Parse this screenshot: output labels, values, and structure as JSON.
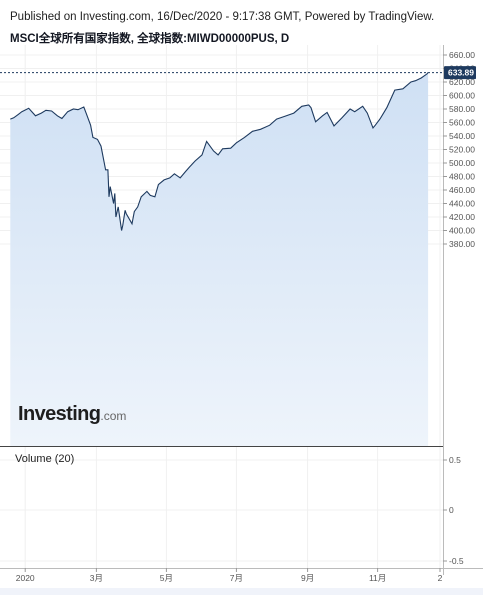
{
  "header": {
    "published": "Published on Investing.com, 16/Dec/2020 - 9:17:38 GMT, Powered by TradingView.",
    "title": "MSCI全球所有国家指数, 全球指数:MIWD00000PUS, D"
  },
  "logo": {
    "brand": "Investing",
    "domain": ".com"
  },
  "volume": {
    "label": "Volume (20)",
    "ticks": [
      "0.5",
      "0",
      "-0.5"
    ]
  },
  "colors": {
    "line": "#1e3a5f",
    "fill_top": "#cfe0f4",
    "fill_bottom": "#eef4fb",
    "grid": "#f0f0f0",
    "price_label_bg": "#1e3a5f"
  },
  "chart_data": {
    "type": "area",
    "series": [
      {
        "x": [
          "2019-12-17",
          "2019-12-20",
          "2019-12-24",
          "2019-12-27",
          "2020-01-02",
          "2020-01-08",
          "2020-01-13",
          "2020-01-17",
          "2020-01-22",
          "2020-01-27",
          "2020-01-31",
          "2020-02-05",
          "2020-02-10",
          "2020-02-14",
          "2020-02-19",
          "2020-02-21",
          "2020-02-25",
          "2020-02-27",
          "2020-03-02",
          "2020-03-05",
          "2020-03-09",
          "2020-03-11",
          "2020-03-12",
          "2020-03-13",
          "2020-03-16",
          "2020-03-17",
          "2020-03-18",
          "2020-03-20",
          "2020-03-23",
          "2020-03-24",
          "2020-03-26",
          "2020-03-27",
          "2020-04-01",
          "2020-04-03",
          "2020-04-06",
          "2020-04-09",
          "2020-04-14",
          "2020-04-17",
          "2020-04-21",
          "2020-04-24",
          "2020-04-29",
          "2020-05-04",
          "2020-05-08",
          "2020-05-13",
          "2020-05-18",
          "2020-05-21",
          "2020-05-26",
          "2020-06-01",
          "2020-06-05",
          "2020-06-08",
          "2020-06-11",
          "2020-06-15",
          "2020-06-19",
          "2020-06-26",
          "2020-07-01",
          "2020-07-08",
          "2020-07-15",
          "2020-07-22",
          "2020-07-30",
          "2020-08-05",
          "2020-08-12",
          "2020-08-20",
          "2020-08-27",
          "2020-09-02",
          "2020-09-04",
          "2020-09-08",
          "2020-09-14",
          "2020-09-18",
          "2020-09-24",
          "2020-10-01",
          "2020-10-08",
          "2020-10-12",
          "2020-10-19",
          "2020-10-23",
          "2020-10-28",
          "2020-10-30",
          "2020-11-03",
          "2020-11-09",
          "2020-11-16",
          "2020-11-23",
          "2020-11-30",
          "2020-12-04",
          "2020-12-09",
          "2020-12-14",
          "2020-12-15"
        ],
        "y": [
          565,
          567,
          572,
          576,
          581,
          570,
          574,
          578,
          577,
          570,
          566,
          576,
          580,
          579,
          583,
          574,
          556,
          538,
          535,
          525,
          490,
          490,
          450,
          465,
          440,
          455,
          420,
          435,
          400,
          408,
          430,
          425,
          410,
          428,
          435,
          450,
          458,
          452,
          450,
          468,
          475,
          478,
          484,
          478,
          488,
          494,
          503,
          512,
          532,
          525,
          518,
          512,
          521,
          522,
          530,
          538,
          547,
          550,
          556,
          565,
          569,
          574,
          584,
          586,
          582,
          561,
          570,
          575,
          555,
          567,
          580,
          576,
          584,
          574,
          552,
          556,
          565,
          582,
          608,
          610,
          620,
          622,
          626,
          632,
          634
        ]
      }
    ],
    "ylim": [
      370,
      665
    ],
    "y_ticks": [
      "660.00",
      "640.00",
      "620.00",
      "600.00",
      "580.00",
      "560.00",
      "540.00",
      "520.00",
      "500.00",
      "480.00",
      "460.00",
      "440.00",
      "420.00",
      "400.00",
      "380.00"
    ],
    "x_ticks": [
      "2020",
      "3月",
      "5月",
      "7月",
      "9月",
      "11月",
      "2"
    ],
    "last_value": "633.89",
    "grid": true
  }
}
